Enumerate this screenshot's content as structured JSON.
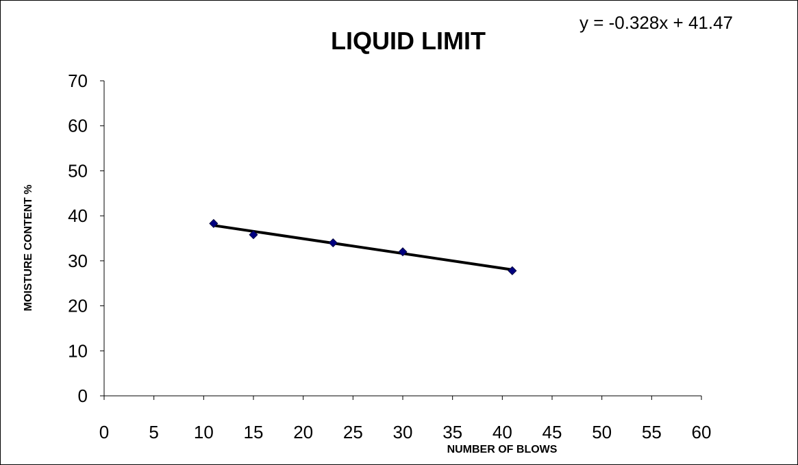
{
  "chart_data": {
    "type": "scatter",
    "title": "LIQUID LIMIT",
    "xlabel": "NUMBER OF BLOWS",
    "ylabel": "MOISTURE CONTENT %",
    "xlim": [
      0,
      60
    ],
    "ylim": [
      0,
      70
    ],
    "x_ticks": [
      0,
      5,
      10,
      15,
      20,
      25,
      30,
      35,
      40,
      45,
      50,
      55,
      60
    ],
    "y_ticks": [
      0,
      10,
      20,
      30,
      40,
      50,
      60,
      70
    ],
    "grid": false,
    "legend": "none",
    "series": [
      {
        "x": [
          11,
          15,
          23,
          30,
          41
        ],
        "y": [
          38.3,
          35.8,
          34.0,
          32.0,
          27.8
        ],
        "marker": "diamond",
        "color": "#000080"
      }
    ],
    "trendline": {
      "type": "linear",
      "slope": -0.328,
      "intercept": 41.47,
      "x_range": [
        11,
        41
      ],
      "color": "#000000",
      "equation_label": "y = -0.328x + 41.47",
      "equation_position": "top-right"
    }
  }
}
